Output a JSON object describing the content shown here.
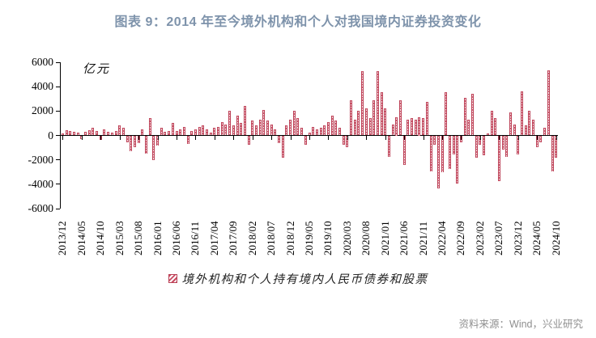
{
  "title": "图表 9：2014 年至今境外机构和个人对我国境内证券投资变化",
  "footer": {
    "source": "资料来源：Wind，兴业研究"
  },
  "chart_data": {
    "type": "bar",
    "title": "2014 年至今境外机构和个人对我国境内证券投资变化",
    "unit_label": "亿元",
    "ylabel": "亿元",
    "ylim": [
      -6000,
      6000
    ],
    "yticks": [
      6000,
      4000,
      2000,
      0,
      -2000,
      -4000,
      -6000
    ],
    "grid": "off",
    "legend_position": "bottom",
    "legend_label": "境外机构和个人持有境内人民币债券和股票",
    "bar_color": "#c2495c",
    "x_range": [
      "2013/12",
      "2024/10"
    ],
    "x_frequency": "monthly",
    "x_tick_interval": 5,
    "x_tick_labels": [
      "2013/12",
      "2014/05",
      "2014/10",
      "2015/03",
      "2015/08",
      "2016/01",
      "2016/06",
      "2016/11",
      "2017/04",
      "2017/09",
      "2018/02",
      "2018/07",
      "2018/12",
      "2019/05",
      "2019/10",
      "2020/03",
      "2020/08",
      "2021/01",
      "2021/06",
      "2021/11",
      "2022/04",
      "2022/09",
      "2023/02",
      "2023/07",
      "2023/12",
      "2024/05",
      "2024/10"
    ],
    "series": [
      {
        "name": "境外机构和个人持有境内人民币债券和股票",
        "values": [
          150,
          400,
          380,
          300,
          200,
          -280,
          300,
          420,
          650,
          380,
          -350,
          500,
          280,
          200,
          380,
          800,
          600,
          -500,
          -1250,
          -900,
          -600,
          500,
          -1470,
          1400,
          -2000,
          -750,
          600,
          300,
          350,
          1000,
          350,
          500,
          700,
          -650,
          350,
          500,
          700,
          800,
          500,
          250,
          600,
          700,
          1100,
          900,
          2000,
          800,
          1600,
          1000,
          2420,
          -700,
          1200,
          800,
          1300,
          2100,
          1200,
          900,
          500,
          -600,
          -1800,
          800,
          1300,
          2000,
          1400,
          600,
          -700,
          200,
          700,
          500,
          600,
          800,
          1100,
          1650,
          1200,
          600,
          -700,
          -900,
          2870,
          1300,
          2000,
          5270,
          2200,
          1400,
          2870,
          5300,
          3530,
          2200,
          -1700,
          900,
          1500,
          2900,
          -2400,
          1300,
          1400,
          1300,
          1500,
          1400,
          2750,
          -2900,
          -700,
          -4300,
          -3000,
          3530,
          -2700,
          -1500,
          -3930,
          -500,
          3070,
          1300,
          3400,
          -1800,
          -700,
          -1600,
          150,
          2000,
          1400,
          -3700,
          -1100,
          -1700,
          1900,
          900,
          -1500,
          3600,
          850,
          2000,
          1300,
          -900,
          -500,
          600,
          5330,
          -2930,
          -1800
        ]
      }
    ]
  }
}
